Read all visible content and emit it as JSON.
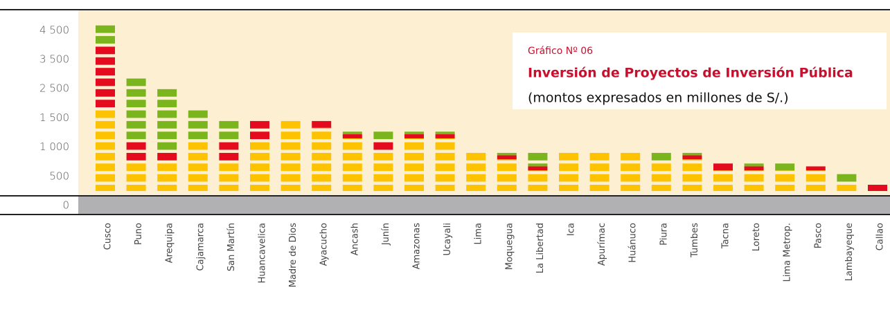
{
  "chart_data": {
    "type": "bar",
    "stacked": true,
    "title": "Gráfico Nº 06",
    "subtitle": "Inversión de Proyectos de Inversión Pública",
    "note": "(montos expresados en millones de S/.)",
    "categories": [
      "Cusco",
      "Puno",
      "Arequipa",
      "Cajamarca",
      "San Martín",
      "Huancavelica",
      "Madre de Dios",
      "Ayacucho",
      "Ancash",
      "Junín",
      "Amazonas",
      "Ucayali",
      "Lima",
      "Moquegua",
      "La Libertad",
      "Ica",
      "Apurímac",
      "Huánuco",
      "Piura",
      "Tumbes",
      "Tacna",
      "Loreto",
      "Lima Metrop.",
      "Pasco",
      "Lambayeque",
      "Callao"
    ],
    "series": [
      {
        "color": "#fdc300",
        "values": [
          1810,
          730,
          730,
          1090,
          730,
          1120,
          1470,
          1330,
          1150,
          940,
          1150,
          1150,
          940,
          790,
          600,
          940,
          940,
          940,
          760,
          790,
          600,
          600,
          600,
          600,
          400,
          0
        ]
      },
      {
        "color": "#e30b1d",
        "values": [
          2170,
          390,
          210,
          30,
          390,
          350,
          0,
          140,
          70,
          180,
          70,
          70,
          0,
          70,
          70,
          0,
          0,
          0,
          0,
          70,
          140,
          70,
          0,
          70,
          0,
          380
        ]
      },
      {
        "color": "#7ab51d",
        "values": [
          740,
          1760,
          1560,
          670,
          350,
          0,
          0,
          0,
          70,
          170,
          70,
          70,
          0,
          70,
          270,
          0,
          0,
          0,
          180,
          70,
          0,
          70,
          140,
          0,
          160,
          0
        ]
      }
    ],
    "ylim": [
      0,
      4500
    ],
    "yticks": [
      0,
      500,
      {
        "value": 1000,
        "label": "1 000"
      },
      {
        "value": 1500,
        "label": "1 500"
      },
      {
        "value": 2500,
        "label": "2 500"
      },
      {
        "value": 3500,
        "label": "3 500"
      },
      {
        "value": 4500,
        "label": "4 500"
      }
    ]
  }
}
